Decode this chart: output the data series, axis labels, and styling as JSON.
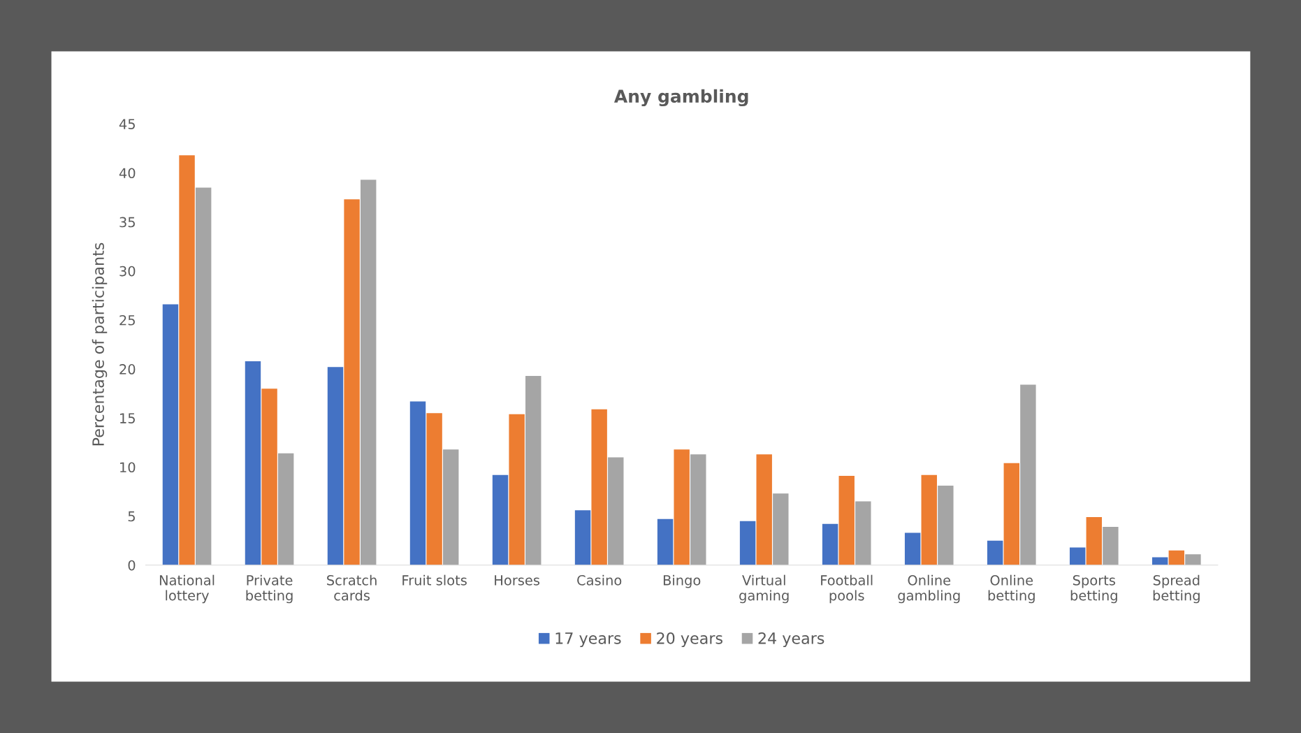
{
  "chart_data": {
    "type": "bar",
    "title": "Any gambling",
    "ylabel": "Percentage of participants",
    "categories": [
      "National\nlottery",
      "Private\nbetting",
      "Scratch\ncards",
      "Fruit slots",
      "Horses",
      "Casino",
      "Bingo",
      "Virtual\ngaming",
      "Football\npools",
      "Online\ngambling",
      "Online\nbetting",
      "Sports\nbetting",
      "Spread\nbetting"
    ],
    "series": [
      {
        "name": "17 years",
        "color": "#4472c4",
        "values": [
          26.6,
          20.8,
          20.2,
          16.7,
          9.2,
          5.6,
          4.7,
          4.5,
          4.2,
          3.3,
          2.5,
          1.8,
          0.8
        ]
      },
      {
        "name": "20 years",
        "color": "#ed7d31",
        "values": [
          41.8,
          18.0,
          37.3,
          15.5,
          15.4,
          15.9,
          11.8,
          11.3,
          9.1,
          9.2,
          10.4,
          4.9,
          1.5
        ]
      },
      {
        "name": "24 years",
        "color": "#a5a5a5",
        "values": [
          38.5,
          11.4,
          39.3,
          11.8,
          19.3,
          11.0,
          11.3,
          7.3,
          6.5,
          8.1,
          18.4,
          3.9,
          1.1
        ]
      }
    ],
    "ylim": [
      0,
      45
    ],
    "yticks": [
      0,
      5,
      10,
      15,
      20,
      25,
      30,
      35,
      40,
      45
    ],
    "grid": false,
    "legend": "bottom"
  }
}
